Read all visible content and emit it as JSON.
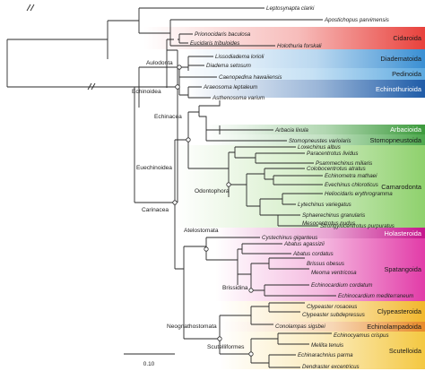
{
  "figure": {
    "taxa": [
      "Leptosynapta clarki",
      "Apostichopus parvimensis",
      "Holothuria forskali",
      "Prionocidaris baculosa",
      "Eucidaris tribuloides",
      "Lissodiadema lorioli",
      "Diadema setosum",
      "Caenopedina hawaiiensis",
      "Araeosoma leptaleum",
      "Asthenosoma varium",
      "Arbacia lixula",
      "Stomopneustes variolaris",
      "Loxechinus albus",
      "Paracentrotus lividus",
      "Psammechinus miliaris",
      "Colobocentrotus atratus",
      "Echinometra mathaei",
      "Evechinus chloroticus",
      "Heliocidaris erythrogramma",
      "Lytechinus variegatus",
      "Sphaerechinus granularis",
      "Mesocentrotus nudus",
      "Strongylocentrotus purpuratus",
      "Cystechinus giganteus",
      "Abatus agassizii",
      "Abatus cordatus",
      "Brissus obesus",
      "Meoma ventricosa",
      "Echinocardium cordatum",
      "Echinocardium mediterraneum",
      "Clypeaster rosaceus",
      "Clypeaster subdepressus",
      "Conolampas sigsbei",
      "Echinocyamus crispus",
      "Mellita tenuis",
      "Echinarachnius parma",
      "Dendraster excentricus"
    ],
    "clades": [
      {
        "name": "Cidaroida",
        "color": "#e8413c",
        "light": false
      },
      {
        "name": "Diadematoida",
        "color": "#3a8fd3",
        "light": false
      },
      {
        "name": "Pedinoida",
        "color": "#5ca9e0",
        "light": false
      },
      {
        "name": "Echinothurioida",
        "color": "#1f5ca8",
        "light": true
      },
      {
        "name": "Arbacioida",
        "color": "#3b9a3b",
        "light": true
      },
      {
        "name": "Stomopneustoida",
        "color": "#4ea84e",
        "light": false
      },
      {
        "name": "Camarodonta",
        "color": "#8fd16d",
        "light": false
      },
      {
        "name": "Holasteroida",
        "color": "#c5158c",
        "light": true
      },
      {
        "name": "Spatangoida",
        "color": "#e23ca8",
        "light": false
      },
      {
        "name": "Clypeasteroida",
        "color": "#f2b72b",
        "light": false
      },
      {
        "name": "Echinolampadoida",
        "color": "#e88a2a",
        "light": false
      },
      {
        "name": "Scutelloida",
        "color": "#f4c842",
        "light": false
      }
    ],
    "node_labels": {
      "echinoidea": "Echinoidea",
      "euechinoidea": "Euechinoidea",
      "aulodonta": "Aulodonta",
      "carinacea": "Carinacea",
      "echinacea": "Echinacea",
      "odontophora": "Odontophora",
      "atelostomata": "Atelostomata",
      "brissidina": "Brissidina",
      "neognathostomata": "Neognathostomata",
      "scutelliformes": "Scutelliformes"
    },
    "scale_bar": {
      "label": "0.10"
    }
  }
}
